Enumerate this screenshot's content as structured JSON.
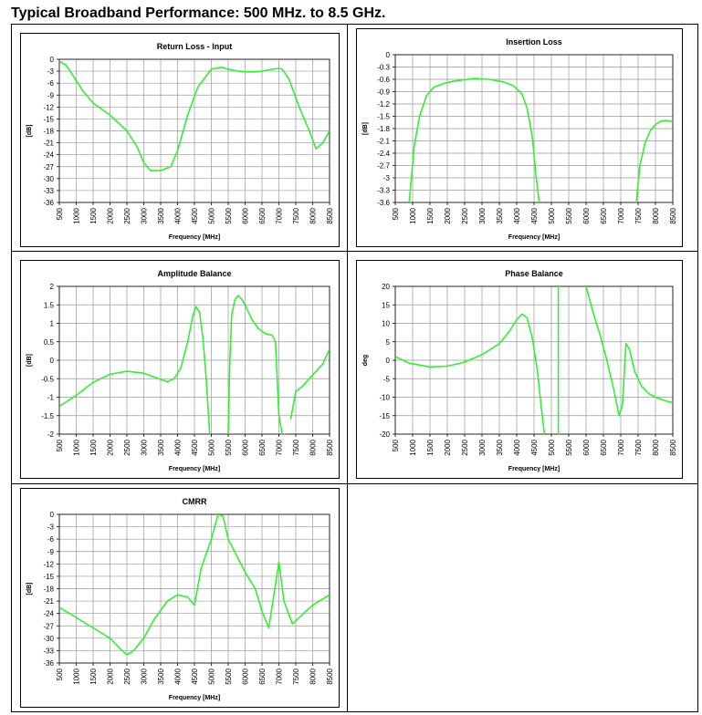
{
  "page": {
    "title": "Typical Broadband Performance: 500 MHz. to 8.5 GHz."
  },
  "colors": {
    "trace": "#33ee33",
    "gridline": "#999999",
    "axis": "#000000"
  },
  "chart_data": [
    {
      "type": "line",
      "title": "Return Loss - Input",
      "xlabel": "Frequency [MHz]",
      "ylabel": "[dB]",
      "xlim": [
        500,
        8500
      ],
      "ylim": [
        -36,
        0
      ],
      "xticks": [
        "500",
        "1000",
        "1500",
        "2000",
        "2500",
        "3000",
        "3500",
        "4000",
        "4500",
        "5000",
        "5500",
        "6000",
        "6500",
        "7000",
        "7500",
        "8000",
        "8500"
      ],
      "yticks": [
        "0",
        "-3",
        "-6",
        "-9",
        "-12",
        "-15",
        "-18",
        "-21",
        "-24",
        "-27",
        "-30",
        "-33",
        "-36"
      ],
      "grid": true,
      "series": [
        {
          "x": [
            500,
            700,
            900,
            1200,
            1500,
            2000,
            2500,
            2800,
            3000,
            3200,
            3500,
            3800,
            4000,
            4300,
            4600,
            5000,
            5300,
            5500,
            5800,
            6200,
            6500,
            6800,
            7000,
            7100,
            7300,
            7600,
            7900,
            8100,
            8300,
            8500
          ],
          "y": [
            -0.5,
            -1.5,
            -4,
            -8,
            -11,
            -14,
            -18,
            -22,
            -26,
            -28,
            -28,
            -27,
            -23,
            -14,
            -7,
            -2.5,
            -2,
            -2.5,
            -3,
            -3.2,
            -3,
            -2.5,
            -2.3,
            -2.5,
            -5,
            -12,
            -18,
            -22.5,
            -21,
            -18
          ]
        }
      ]
    },
    {
      "type": "line",
      "title": "Insertion Loss",
      "xlabel": "Frequency [MHz]",
      "ylabel": "[dB]",
      "xlim": [
        500,
        8500
      ],
      "ylim": [
        -3.6,
        0
      ],
      "xticks": [
        "500",
        "1000",
        "1500",
        "2000",
        "2500",
        "3000",
        "3500",
        "4000",
        "4500",
        "5000",
        "5500",
        "6000",
        "6500",
        "7000",
        "7500",
        "8000",
        "8500"
      ],
      "yticks": [
        "0",
        "-0.3",
        "-0.6",
        "-0.9",
        "-1.2",
        "-1.5",
        "-1.8",
        "-2.1",
        "-2.4",
        "-2.7",
        "-3",
        "-3.3",
        "-3.6"
      ],
      "grid": true,
      "series": [
        {
          "x": [
            900,
            1050,
            1200,
            1400,
            1600,
            1900,
            2200,
            2500,
            2800,
            3200,
            3600,
            3900,
            4150,
            4300,
            4450,
            4550,
            4650
          ],
          "y": [
            -3.6,
            -2.2,
            -1.5,
            -1.0,
            -0.8,
            -0.7,
            -0.64,
            -0.61,
            -0.58,
            -0.6,
            -0.66,
            -0.75,
            -0.95,
            -1.3,
            -2.0,
            -2.9,
            -3.6
          ]
        },
        {
          "x": [
            7450,
            7550,
            7700,
            7850,
            8000,
            8150,
            8300,
            8500
          ],
          "y": [
            -3.6,
            -2.7,
            -2.15,
            -1.85,
            -1.7,
            -1.62,
            -1.6,
            -1.63
          ]
        }
      ]
    },
    {
      "type": "line",
      "title": "Amplitude Balance",
      "xlabel": "Frequency [MHz]",
      "ylabel": "[dB]",
      "xlim": [
        500,
        8500
      ],
      "ylim": [
        -2,
        2
      ],
      "xticks": [
        "500",
        "1000",
        "1500",
        "2000",
        "2500",
        "3000",
        "3500",
        "4000",
        "4500",
        "5000",
        "5500",
        "6000",
        "6500",
        "7000",
        "7500",
        "8000",
        "8500"
      ],
      "yticks": [
        "2",
        "1.5",
        "1",
        "0.5",
        "0",
        "-0.5",
        "-1",
        "-1.5",
        "-2"
      ],
      "grid": true,
      "series": [
        {
          "x": [
            500,
            1000,
            1500,
            2000,
            2500,
            3000,
            3500,
            3700,
            3900,
            4100,
            4300,
            4450,
            4550,
            4650,
            4750,
            4850,
            4950
          ],
          "y": [
            -1.25,
            -0.95,
            -0.6,
            -0.38,
            -0.3,
            -0.35,
            -0.52,
            -0.58,
            -0.5,
            -0.2,
            0.5,
            1.2,
            1.45,
            1.3,
            0.6,
            -0.5,
            -2.0
          ]
        },
        {
          "x": [
            5500,
            5550,
            5600,
            5700,
            5800,
            5900,
            6000,
            6200,
            6400,
            6600,
            6800,
            6900,
            7000,
            7100,
            7200
          ],
          "y": [
            -2.0,
            0.0,
            1.2,
            1.65,
            1.75,
            1.65,
            1.5,
            1.1,
            0.85,
            0.72,
            0.68,
            0.5,
            -1.5,
            -2.0,
            -2.0
          ]
        },
        {
          "x": [
            7350,
            7500,
            7700,
            8000,
            8300,
            8500
          ],
          "y": [
            -1.6,
            -0.85,
            -0.7,
            -0.4,
            -0.1,
            0.3
          ]
        }
      ]
    },
    {
      "type": "line",
      "title": "Phase Balance",
      "xlabel": "Frequency [MHz]",
      "ylabel": "deg",
      "xlim": [
        500,
        8500
      ],
      "ylim": [
        -20,
        20
      ],
      "xticks": [
        "500",
        "1000",
        "1500",
        "2000",
        "2500",
        "3000",
        "3500",
        "4000",
        "4500",
        "5000",
        "5500",
        "6000",
        "6500",
        "7000",
        "7500",
        "8000",
        "8500"
      ],
      "yticks": [
        "20",
        "15",
        "10",
        "5",
        "0",
        "-5",
        "-10",
        "-15",
        "-20"
      ],
      "grid": true,
      "series": [
        {
          "x": [
            500,
            900,
            1500,
            2000,
            2500,
            3000,
            3500,
            3800,
            4000,
            4150,
            4300,
            4450,
            4600,
            4700,
            4800
          ],
          "y": [
            1,
            -0.8,
            -1.8,
            -1.6,
            -0.5,
            1.5,
            4.5,
            8,
            11,
            12.5,
            11.5,
            6,
            -3,
            -12,
            -20
          ]
        },
        {
          "x": [
            5200,
            5200
          ],
          "y": [
            -20,
            20
          ]
        },
        {
          "x": [
            6000,
            6200,
            6400,
            6600,
            6800,
            6950,
            7050,
            7150,
            7250,
            7400,
            7600,
            7800,
            8000,
            8300,
            8500
          ],
          "y": [
            20,
            13,
            7,
            0,
            -8,
            -15,
            -12,
            4.5,
            3,
            -3,
            -7,
            -9,
            -10,
            -11,
            -11.5
          ]
        }
      ]
    },
    {
      "type": "line",
      "title": "CMRR",
      "xlabel": "Frequency [MHz]",
      "ylabel": "[dB]",
      "xlim": [
        500,
        8500
      ],
      "ylim": [
        -36,
        0
      ],
      "xticks": [
        "500",
        "1000",
        "1500",
        "2000",
        "2500",
        "3000",
        "3500",
        "4000",
        "4500",
        "5000",
        "5500",
        "6000",
        "6500",
        "7000",
        "7500",
        "8000",
        "8500"
      ],
      "yticks": [
        "0",
        "-3",
        "-6",
        "-9",
        "-12",
        "-15",
        "-18",
        "-21",
        "-24",
        "-27",
        "-30",
        "-33",
        "-36"
      ],
      "grid": true,
      "series": [
        {
          "x": [
            500,
            1000,
            1500,
            2000,
            2300,
            2500,
            2700,
            3000,
            3300,
            3700,
            4000,
            4300,
            4500,
            4700,
            5000,
            5200,
            5350,
            5500,
            6000,
            6300,
            6500,
            6700,
            6900,
            7000,
            7150,
            7400,
            7600,
            8000,
            8300,
            8500
          ],
          "y": [
            -22.5,
            -25,
            -27.5,
            -30,
            -32.5,
            -34,
            -33,
            -30,
            -25.5,
            -21,
            -19.5,
            -20,
            -22,
            -13,
            -6,
            0,
            -0.5,
            -6,
            -14,
            -18,
            -23.5,
            -27.5,
            -17,
            -11.5,
            -21,
            -26.5,
            -25,
            -22,
            -20.5,
            -19.5
          ]
        }
      ]
    }
  ]
}
